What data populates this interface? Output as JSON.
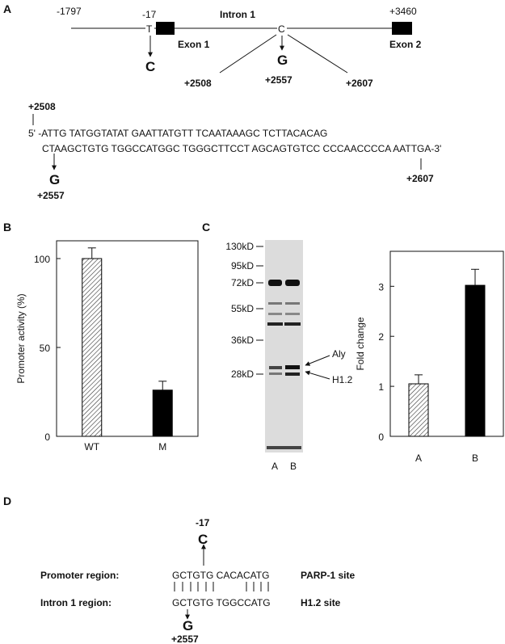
{
  "panel_labels": [
    "A",
    "B",
    "C",
    "D"
  ],
  "gene": {
    "start": "-1797",
    "tss": "-17",
    "tss_base": "T",
    "exon1": "Exon 1",
    "intron": "Intron 1",
    "snp_base": "C",
    "end": "+3460",
    "exon2": "Exon 2",
    "tss_mut": "C",
    "snp_mut": "G",
    "left": "+2508",
    "mid": "+2557",
    "right": "+2607"
  },
  "sequence": {
    "start_pos": "+2508",
    "line1": "5' -ATTG TATGGTATAT GAATTATGTT TCAATAAAGC TCTTACACAG",
    "line2": "CTAAGCTGTG TGGCCATGGC TGGGCTTCCT AGCAGTGTCC CCCAACCCCA AATTGA-3'",
    "mut": "G",
    "mut_pos": "+2557",
    "end_pos": "+2607"
  },
  "gel": {
    "markers": [
      "130kD",
      "95kD",
      "72kD",
      "55kD",
      "36kD",
      "28kD"
    ],
    "arrows": [
      "Aly",
      "H1.2"
    ],
    "lanes": [
      "A",
      "B"
    ]
  },
  "alignment": {
    "pos": "-17",
    "top_mut": "C",
    "row1_label": "Promoter region:",
    "row1_seq": "GCTGTG CACACATG",
    "row1_site": "PARP-1 site",
    "row2_label": "Intron 1 region:",
    "row2_seq": "GCTGTG TGGCCATG",
    "row2_site": "H1.2 site",
    "bottom_mut": "G",
    "bottom_pos": "+2557"
  },
  "chart_data": [
    {
      "type": "bar",
      "ylabel": "Promoter activity (%)",
      "categories": [
        "WT",
        "M"
      ],
      "values": [
        100,
        26
      ],
      "errors": [
        6,
        5
      ],
      "patterns": [
        "hatch",
        "solid"
      ],
      "color": "#000000",
      "ylim": [
        0,
        110
      ],
      "yticks": [
        0,
        50,
        100
      ]
    },
    {
      "type": "bar",
      "ylabel": "Fold change",
      "categories": [
        "A",
        "B"
      ],
      "values": [
        1.05,
        3.02
      ],
      "errors": [
        0.18,
        0.32
      ],
      "patterns": [
        "hatch",
        "solid"
      ],
      "color": "#000000",
      "ylim": [
        0,
        3.7
      ],
      "yticks": [
        0,
        1,
        2,
        3
      ]
    }
  ]
}
